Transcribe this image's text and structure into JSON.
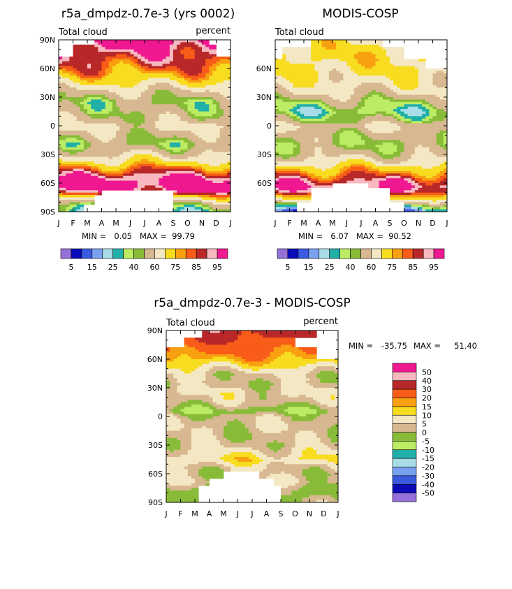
{
  "chart_data": [
    {
      "type": "heatmap",
      "title": "r5a_dmpdz-0.7e-3 (yrs 0002)",
      "field_label": "Total cloud",
      "units": "percent",
      "x_labels": [
        "J",
        "F",
        "M",
        "A",
        "M",
        "J",
        "J",
        "A",
        "S",
        "O",
        "N",
        "D",
        "J"
      ],
      "y_labels": [
        "90N",
        "60N",
        "30N",
        "0",
        "30S",
        "60S",
        "90S"
      ],
      "ylim": [
        -90,
        90
      ],
      "min_label": "MIN =",
      "min_value": "0.05",
      "max_label": "MAX =",
      "max_value": "99.79",
      "colorbar_labels": [
        "5",
        "15",
        "25",
        "40",
        "60",
        "75",
        "85",
        "95"
      ],
      "colorbar_colors": [
        "#9470d8",
        "#0a0ab8",
        "#3a5ae0",
        "#7aa0f0",
        "#a8dce6",
        "#20b0a8",
        "#bcec64",
        "#88bc38",
        "#d8b890",
        "#f4e8c4",
        "#f8dc20",
        "#f8a010",
        "#f85c18",
        "#b82828",
        "#f8b8c0",
        "#f01890"
      ],
      "profile": [
        {
          "lat": 90,
          "v": 96
        },
        {
          "lat": 78,
          "v": 88
        },
        {
          "lat": 65,
          "v": 80
        },
        {
          "lat": 55,
          "v": 72
        },
        {
          "lat": 45,
          "v": 60
        },
        {
          "lat": 35,
          "v": 47
        },
        {
          "lat": 25,
          "v": 38
        },
        {
          "lat": 15,
          "v": 40
        },
        {
          "lat": 5,
          "v": 45
        },
        {
          "lat": 0,
          "v": 52
        },
        {
          "lat": -10,
          "v": 44
        },
        {
          "lat": -20,
          "v": 38
        },
        {
          "lat": -30,
          "v": 50
        },
        {
          "lat": -38,
          "v": 62
        },
        {
          "lat": -45,
          "v": 76
        },
        {
          "lat": -50,
          "v": 84
        },
        {
          "lat": -55,
          "v": 92
        },
        {
          "lat": -62,
          "v": 96
        },
        {
          "lat": -68,
          "v": 90
        },
        {
          "lat": -75,
          "v": 65
        },
        {
          "lat": -82,
          "v": 40
        },
        {
          "lat": -90,
          "v": 30
        }
      ],
      "missing": [
        {
          "lat0": 90,
          "lat1": 84,
          "t0": 0,
          "t1": 2.5
        },
        {
          "lat0": 90,
          "lat1": 84,
          "t0": 10.5,
          "t1": 12
        },
        {
          "lat0": 84,
          "lat1": 72,
          "t0": 0,
          "t1": 1
        },
        {
          "lat0": 84,
          "lat1": 72,
          "t0": 11,
          "t1": 12
        },
        {
          "lat0": -68,
          "lat1": -90,
          "t0": 3,
          "t1": 8
        },
        {
          "lat0": -72,
          "lat1": -90,
          "t0": 2.5,
          "t1": 3
        },
        {
          "lat0": -82,
          "lat1": -90,
          "t0": 1.8,
          "t1": 2.5
        }
      ]
    },
    {
      "type": "heatmap",
      "title": "MODIS-COSP",
      "field_label": "Total cloud",
      "units": "",
      "x_labels": [
        "J",
        "F",
        "M",
        "A",
        "M",
        "J",
        "J",
        "A",
        "S",
        "O",
        "N",
        "D",
        "J"
      ],
      "y_labels": [
        "60N",
        "30N",
        "0",
        "30S",
        "60S"
      ],
      "ylim": [
        -90,
        90
      ],
      "min_label": "MIN =",
      "min_value": "6.07",
      "max_label": "MAX =",
      "max_value": "90.52",
      "colorbar_labels": [
        "5",
        "15",
        "25",
        "40",
        "60",
        "75",
        "85",
        "95"
      ],
      "colorbar_colors": [
        "#9470d8",
        "#0a0ab8",
        "#3a5ae0",
        "#7aa0f0",
        "#a8dce6",
        "#20b0a8",
        "#bcec64",
        "#88bc38",
        "#d8b890",
        "#f4e8c4",
        "#f8dc20",
        "#f8a010",
        "#f85c18",
        "#b82828",
        "#f8b8c0",
        "#f01890"
      ],
      "profile": [
        {
          "lat": 90,
          "v": 60
        },
        {
          "lat": 75,
          "v": 65
        },
        {
          "lat": 65,
          "v": 62
        },
        {
          "lat": 55,
          "v": 60
        },
        {
          "lat": 45,
          "v": 55
        },
        {
          "lat": 35,
          "v": 50
        },
        {
          "lat": 25,
          "v": 38
        },
        {
          "lat": 15,
          "v": 30
        },
        {
          "lat": 5,
          "v": 40
        },
        {
          "lat": 0,
          "v": 50
        },
        {
          "lat": -10,
          "v": 42
        },
        {
          "lat": -20,
          "v": 38
        },
        {
          "lat": -30,
          "v": 45
        },
        {
          "lat": -38,
          "v": 55
        },
        {
          "lat": -45,
          "v": 68
        },
        {
          "lat": -52,
          "v": 78
        },
        {
          "lat": -58,
          "v": 86
        },
        {
          "lat": -64,
          "v": 90
        },
        {
          "lat": -70,
          "v": 80
        },
        {
          "lat": -78,
          "v": 55
        },
        {
          "lat": -84,
          "v": 30
        },
        {
          "lat": -90,
          "v": 15
        }
      ],
      "missing": [
        {
          "lat0": 90,
          "lat1": 82,
          "t0": 0,
          "t1": 2.5
        },
        {
          "lat0": 90,
          "lat1": 82,
          "t0": 7.5,
          "t1": 12
        },
        {
          "lat0": 82,
          "lat1": 70,
          "t0": 0,
          "t1": 0.5
        },
        {
          "lat0": 82,
          "lat1": 70,
          "t0": 9,
          "t1": 12
        },
        {
          "lat0": 70,
          "lat1": 60,
          "t0": 10.5,
          "t1": 12
        },
        {
          "lat0": -60,
          "lat1": -90,
          "t0": 4,
          "t1": 6.5
        },
        {
          "lat0": -65,
          "lat1": -90,
          "t0": 2.5,
          "t1": 8
        },
        {
          "lat0": -80,
          "lat1": -90,
          "t0": 1.5,
          "t1": 9
        }
      ]
    },
    {
      "type": "heatmap",
      "title": "r5a_dmpdz-0.7e-3 - MODIS-COSP",
      "field_label": "Total cloud",
      "units": "percent",
      "x_labels": [
        "J",
        "F",
        "M",
        "A",
        "M",
        "J",
        "J",
        "A",
        "S",
        "O",
        "N",
        "D",
        "J"
      ],
      "y_labels": [
        "90N",
        "60N",
        "30N",
        "0",
        "30S",
        "60S",
        "90S"
      ],
      "ylim": [
        -90,
        90
      ],
      "min_label": "MIN =",
      "min_value": "-35.75",
      "max_label": "MAX =",
      "max_value": "51.40",
      "colorbar_labels": [
        "50",
        "40",
        "30",
        "20",
        "15",
        "10",
        "5",
        "0",
        "-5",
        "-10",
        "-15",
        "-20",
        "-30",
        "-40",
        "-50"
      ],
      "colorbar_colors": [
        "#f01890",
        "#f8b8c0",
        "#b82828",
        "#f85c18",
        "#f8a010",
        "#f8dc20",
        "#f4e8c4",
        "#d8b890",
        "#88bc38",
        "#bcec64",
        "#20b0a8",
        "#a8dce6",
        "#7aa0f0",
        "#3a5ae0",
        "#0a0ab8",
        "#9470d8"
      ],
      "profile": [
        {
          "lat": 90,
          "v": 36
        },
        {
          "lat": 80,
          "v": 30
        },
        {
          "lat": 72,
          "v": 24
        },
        {
          "lat": 62,
          "v": 18
        },
        {
          "lat": 55,
          "v": 12
        },
        {
          "lat": 45,
          "v": 4
        },
        {
          "lat": 35,
          "v": 2
        },
        {
          "lat": 25,
          "v": 6
        },
        {
          "lat": 15,
          "v": 3
        },
        {
          "lat": 5,
          "v": -4
        },
        {
          "lat": 0,
          "v": 2
        },
        {
          "lat": -10,
          "v": 4
        },
        {
          "lat": -20,
          "v": 2
        },
        {
          "lat": -30,
          "v": 3
        },
        {
          "lat": -38,
          "v": 7
        },
        {
          "lat": -45,
          "v": 11
        },
        {
          "lat": -52,
          "v": 5
        },
        {
          "lat": -60,
          "v": 2
        },
        {
          "lat": -68,
          "v": 4
        },
        {
          "lat": -78,
          "v": -4
        },
        {
          "lat": -84,
          "v": -2
        },
        {
          "lat": -90,
          "v": 0
        }
      ],
      "missing": [
        {
          "lat0": 90,
          "lat1": 82,
          "t0": 0,
          "t1": 2.5
        },
        {
          "lat0": 90,
          "lat1": 82,
          "t0": 10.5,
          "t1": 12
        },
        {
          "lat0": 82,
          "lat1": 72,
          "t0": 0,
          "t1": 1.2
        },
        {
          "lat0": 82,
          "lat1": 72,
          "t0": 9,
          "t1": 12
        },
        {
          "lat0": 72,
          "lat1": 60,
          "t0": 10.5,
          "t1": 12
        },
        {
          "lat0": -58,
          "lat1": -90,
          "t0": 4,
          "t1": 6.5
        },
        {
          "lat0": -64,
          "lat1": -90,
          "t0": 3,
          "t1": 7.5
        },
        {
          "lat0": -72,
          "lat1": -90,
          "t0": 2.3,
          "t1": 8
        }
      ]
    }
  ]
}
